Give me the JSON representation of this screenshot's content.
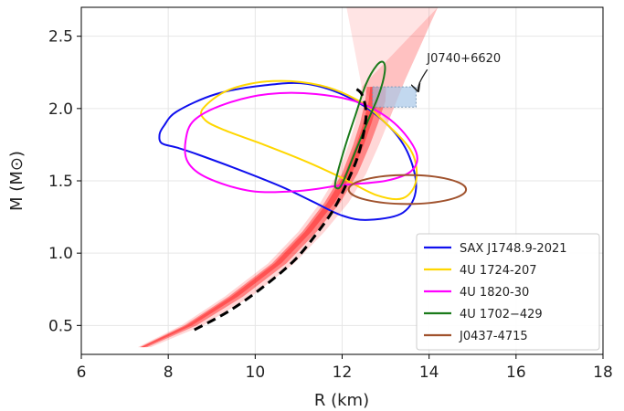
{
  "chart_data": {
    "type": "line",
    "xlabel": "R (km)",
    "ylabel": "M (M⊙)",
    "xlim": [
      6,
      18
    ],
    "ylim": [
      0.3,
      2.7
    ],
    "x_ticks": [
      6,
      8,
      10,
      12,
      14,
      16,
      18
    ],
    "x_tick_labels": [
      "6",
      "8",
      "10",
      "12",
      "14",
      "16",
      "18"
    ],
    "y_ticks": [
      0.5,
      1.0,
      1.5,
      2.0,
      2.5
    ],
    "y_tick_labels": [
      "0.5",
      "1.0",
      "1.5",
      "2.0",
      "2.5"
    ],
    "grid": true,
    "legend_position": "bottom-right",
    "band": {
      "name": "EOS posterior band",
      "color": "#ff2020",
      "lower": [
        [
          7.3,
          0.35
        ],
        [
          8.3,
          0.5
        ],
        [
          9.3,
          0.7
        ],
        [
          10.3,
          0.93
        ],
        [
          11.0,
          1.15
        ],
        [
          11.5,
          1.35
        ],
        [
          11.9,
          1.55
        ],
        [
          12.15,
          1.75
        ],
        [
          12.3,
          1.9
        ],
        [
          12.4,
          2.05
        ],
        [
          12.45,
          2.15
        ]
      ],
      "upper": [
        [
          7.6,
          0.35
        ],
        [
          8.8,
          0.5
        ],
        [
          9.9,
          0.7
        ],
        [
          10.9,
          0.93
        ],
        [
          11.6,
          1.15
        ],
        [
          12.15,
          1.35
        ],
        [
          12.55,
          1.55
        ],
        [
          12.85,
          1.75
        ],
        [
          13.05,
          1.9
        ],
        [
          13.25,
          2.05
        ],
        [
          13.45,
          2.2
        ],
        [
          13.75,
          2.4
        ],
        [
          14.05,
          2.6
        ],
        [
          14.2,
          2.7
        ]
      ],
      "fan_top": [
        [
          12.1,
          2.7
        ],
        [
          13.9,
          2.7
        ]
      ]
    },
    "median": {
      "color": "#000000",
      "style": "dashed",
      "points": [
        [
          8.6,
          0.47
        ],
        [
          9.4,
          0.6
        ],
        [
          10.2,
          0.77
        ],
        [
          10.9,
          0.95
        ],
        [
          11.4,
          1.13
        ],
        [
          11.8,
          1.3
        ],
        [
          12.1,
          1.48
        ],
        [
          12.35,
          1.66
        ],
        [
          12.5,
          1.84
        ],
        [
          12.55,
          1.98
        ],
        [
          12.45,
          2.1
        ],
        [
          12.3,
          2.14
        ]
      ]
    },
    "series": [
      {
        "name": "SAX J1748.9-2021",
        "color": "#1010ee",
        "points": [
          [
            7.9,
            1.88
          ],
          [
            8.2,
            1.98
          ],
          [
            9.1,
            2.1
          ],
          [
            10.2,
            2.16
          ],
          [
            11.2,
            2.17
          ],
          [
            12.2,
            2.07
          ],
          [
            13.0,
            1.9
          ],
          [
            13.5,
            1.7
          ],
          [
            13.7,
            1.45
          ],
          [
            13.4,
            1.28
          ],
          [
            12.6,
            1.23
          ],
          [
            12.0,
            1.26
          ],
          [
            11.3,
            1.36
          ],
          [
            10.6,
            1.46
          ],
          [
            9.6,
            1.58
          ],
          [
            8.7,
            1.68
          ],
          [
            8.2,
            1.73
          ],
          [
            7.85,
            1.76
          ],
          [
            7.8,
            1.82
          ]
        ]
      },
      {
        "name": "4U 1724-207",
        "color": "#ffd700",
        "points": [
          [
            8.8,
            2.0
          ],
          [
            9.4,
            2.13
          ],
          [
            10.4,
            2.19
          ],
          [
            11.5,
            2.16
          ],
          [
            12.4,
            2.05
          ],
          [
            13.0,
            1.9
          ],
          [
            13.6,
            1.7
          ],
          [
            13.7,
            1.5
          ],
          [
            13.4,
            1.38
          ],
          [
            12.8,
            1.4
          ],
          [
            12.0,
            1.52
          ],
          [
            11.2,
            1.63
          ],
          [
            10.2,
            1.75
          ],
          [
            9.3,
            1.85
          ],
          [
            8.85,
            1.92
          ]
        ]
      },
      {
        "name": "4U 1820-30",
        "color": "#ff00ff",
        "points": [
          [
            8.4,
            1.78
          ],
          [
            8.6,
            1.92
          ],
          [
            9.3,
            2.03
          ],
          [
            10.3,
            2.1
          ],
          [
            11.4,
            2.1
          ],
          [
            12.4,
            2.04
          ],
          [
            13.2,
            1.9
          ],
          [
            13.7,
            1.7
          ],
          [
            13.6,
            1.57
          ],
          [
            13.0,
            1.5
          ],
          [
            12.0,
            1.47
          ],
          [
            11.0,
            1.43
          ],
          [
            9.9,
            1.43
          ],
          [
            8.9,
            1.52
          ],
          [
            8.45,
            1.63
          ]
        ]
      },
      {
        "name": "4U 1702−429",
        "color": "#1a7a1a",
        "points": [
          [
            11.85,
            1.5
          ],
          [
            12.05,
            1.72
          ],
          [
            12.3,
            1.95
          ],
          [
            12.55,
            2.17
          ],
          [
            12.8,
            2.3
          ],
          [
            12.95,
            2.32
          ],
          [
            12.98,
            2.25
          ],
          [
            12.85,
            2.1
          ],
          [
            12.6,
            1.92
          ],
          [
            12.3,
            1.7
          ],
          [
            12.0,
            1.48
          ],
          [
            11.87,
            1.45
          ]
        ]
      },
      {
        "name": "J0437-4715",
        "color": "#a0522d",
        "ellipse": {
          "cx": 13.5,
          "cy": 1.44,
          "rx": 1.35,
          "ry": 0.1
        }
      }
    ],
    "rect_region": {
      "name": "J0740+6620",
      "x": [
        12.7,
        13.7
      ],
      "y": [
        2.01,
        2.15
      ],
      "color": "#a8c8e8"
    },
    "annotations": [
      {
        "text": "J0740+6620",
        "x": 14.8,
        "y": 2.32,
        "arrow_to": [
          13.75,
          2.12
        ]
      }
    ]
  }
}
